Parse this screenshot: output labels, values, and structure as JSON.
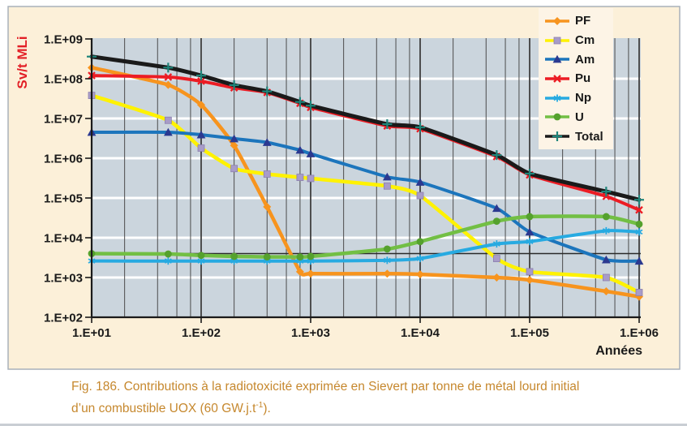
{
  "figure": {
    "caption_line1": "Fig. 186. Contributions à la radiotoxicité exprimée en Sievert par tonne de métal lourd initial",
    "caption_line2_pre": "d’un combustible UOX (60 GW.j.t",
    "caption_sup": "-1",
    "caption_line2_post": ").",
    "caption_color": "#c6882e"
  },
  "colors": {
    "panel_bg": "#fcf0d9",
    "panel_border": "#a9b1ba",
    "plot_bg": "#cbd5dd",
    "h_grid": "#ffffff",
    "v_grid_major": "#3f3f3f",
    "v_grid_minor": "#4c4c4c",
    "axis": "#1a1a1a",
    "tick_text": "#1a1a1a",
    "y_title": "#e21f26",
    "legend_bg": "#fdf4e6",
    "reference_line": "#2a2a2a"
  },
  "chart_data": {
    "type": "line",
    "title": "",
    "xlabel": "Années",
    "ylabel": "Sv/t MLi",
    "x_scale": "log",
    "y_scale": "log",
    "xlim": [
      10,
      1000000
    ],
    "ylim": [
      100,
      1000000000
    ],
    "x_tick_labels": [
      "1.E+01",
      "1.E+02",
      "1.E+03",
      "1.E+04",
      "1.E+05",
      "1.E+06"
    ],
    "y_tick_labels": [
      "1.E+09",
      "1.E+08",
      "1.E+07",
      "1.E+06",
      "1.E+05",
      "1.E+04",
      "1.E+03",
      "1.E+02"
    ],
    "grid": "log decades, white horizontal lines, dark vertical lines with minors at 2,4,6,8",
    "legend_position": "top-right",
    "reference_line_y": 4000,
    "x": [
      10,
      50,
      100,
      200,
      400,
      800,
      1000,
      5000,
      10000,
      50000,
      100000,
      500000,
      1000000
    ],
    "series": [
      {
        "name": "PF",
        "color": "#f7941e",
        "marker": "diamond",
        "marker_color": "#f7941e",
        "values": [
          190000000,
          70000000,
          22000000,
          2100000,
          60000,
          1400,
          1250,
          1250,
          1200,
          1000,
          870,
          450,
          330
        ]
      },
      {
        "name": "Cm",
        "color": "#fff200",
        "marker": "square",
        "marker_color": "#a89cc8",
        "values": [
          38000000,
          9000000,
          1800000,
          550000,
          400000,
          330000,
          310000,
          200000,
          115000,
          3000,
          1400,
          1000,
          420
        ]
      },
      {
        "name": "Am",
        "color": "#1c75bc",
        "marker": "triangle",
        "marker_color": "#2b3990",
        "values": [
          4500000,
          4500000,
          3900000,
          3100000,
          2500000,
          1600000,
          1300000,
          340000,
          250000,
          55000,
          14000,
          2800,
          2600
        ]
      },
      {
        "name": "Pu",
        "color": "#ec1c24",
        "marker": "x",
        "marker_color": "#ec1c24",
        "values": [
          120000000,
          110000000,
          87000000,
          59000000,
          45000000,
          24000000,
          19000000,
          6500000,
          5500000,
          1100000,
          380000,
          110000,
          50000
        ]
      },
      {
        "name": "Np",
        "color": "#27aae1",
        "marker": "asterisk",
        "marker_color": "#27aae1",
        "values": [
          2600,
          2600,
          2600,
          2600,
          2600,
          2600,
          2600,
          2700,
          3000,
          7000,
          8000,
          15000,
          14000
        ]
      },
      {
        "name": "U",
        "color": "#72bf44",
        "marker": "circle",
        "marker_color": "#55a12e",
        "values": [
          4000,
          3900,
          3600,
          3400,
          3300,
          3300,
          3400,
          5200,
          8000,
          26000,
          34000,
          34000,
          22000
        ]
      },
      {
        "name": "Total",
        "color": "#1a1a1a",
        "marker": "plus",
        "marker_color": "#1e857a",
        "values": [
          360000000,
          190000000,
          120000000,
          69000000,
          48000000,
          26000000,
          21000000,
          7200000,
          6000000,
          1200000,
          410000,
          145000,
          90000
        ]
      }
    ]
  }
}
